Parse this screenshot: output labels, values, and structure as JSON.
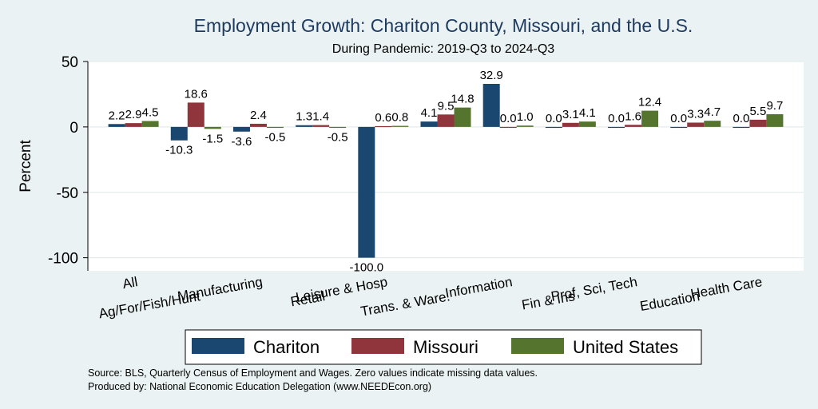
{
  "chart_data": {
    "type": "bar",
    "title": "Employment Growth: Chariton County, Missouri, and the U.S.",
    "subtitle": "During Pandemic: 2019-Q3 to 2024-Q3",
    "ylabel": "Percent",
    "xlabel": "",
    "ylim": [
      -100,
      50
    ],
    "yticks": [
      50,
      0,
      -50,
      -100
    ],
    "grid": true,
    "legend_position": "bottom",
    "categories": [
      "All",
      "Ag/For/Fish/Hunt",
      "Manufacturing",
      "Retail",
      "Leisure & Hosp",
      "Trans. & Ware.",
      "Information",
      "Fin & Ins",
      "Prof, Sci, Tech",
      "Education",
      "Health Care"
    ],
    "series": [
      {
        "name": "Chariton",
        "color": "#1a476f",
        "values": [
          2.2,
          -10.3,
          -3.6,
          1.3,
          -100.0,
          4.1,
          32.9,
          0.0,
          0.0,
          0.0,
          0.0
        ],
        "labels": [
          "2.2",
          "-10.3",
          "-3.6",
          "1.3",
          "-100.0",
          "4.1",
          "32.9",
          "0.0",
          "0.0",
          "0.0",
          "0.0"
        ]
      },
      {
        "name": "Missouri",
        "color": "#90353b",
        "values": [
          2.9,
          18.6,
          2.4,
          1.4,
          0.6,
          9.5,
          0.0,
          3.1,
          1.6,
          3.3,
          5.5
        ],
        "labels": [
          "2.9",
          "18.6",
          "2.4",
          "1.4",
          "0.6",
          "9.5",
          "0.0",
          "3.1",
          "1.6",
          "3.3",
          "5.5"
        ]
      },
      {
        "name": "United States",
        "color": "#55752f",
        "values": [
          4.5,
          -1.5,
          -0.5,
          -0.5,
          0.8,
          14.8,
          1.0,
          4.1,
          12.4,
          4.7,
          9.7
        ],
        "labels": [
          "4.5",
          "-1.5",
          "-0.5",
          "-0.5",
          "0.8",
          "14.8",
          "1.0",
          "4.1",
          "12.4",
          "4.7",
          "9.7"
        ]
      }
    ],
    "notes": [
      "Source: BLS, Quarterly Census of Employment and Wages. Zero values indicate missing data values.",
      "Produced by: National Economic Education Delegation (www.NEEDEcon.org)"
    ]
  }
}
